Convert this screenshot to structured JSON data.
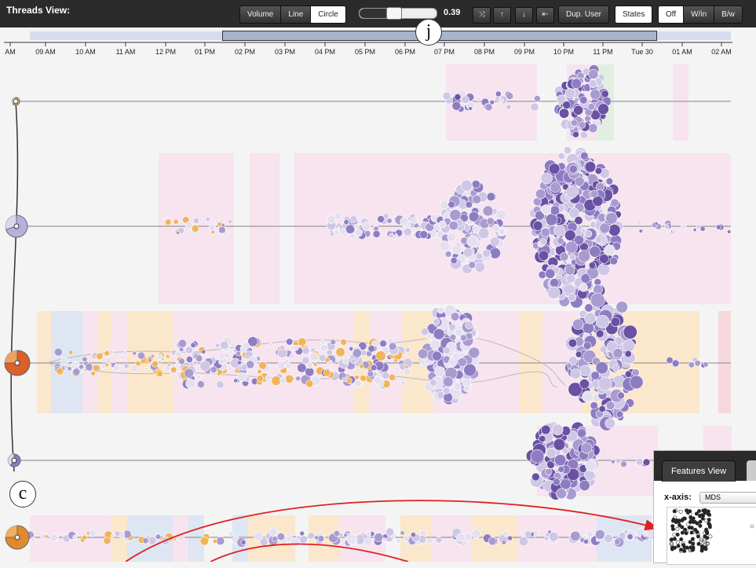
{
  "toolbar": {
    "title": "Threads View:",
    "view_modes": [
      "Volume",
      "Line",
      "Circle"
    ],
    "active_view": "Circle",
    "slider_value": "0.39",
    "slider_fraction": 0.39,
    "icon_buttons": [
      "shuffle-icon",
      "arrow-up-icon",
      "arrow-down-icon",
      "collapse-left-icon"
    ],
    "icon_glyphs": [
      "⤨",
      "↑",
      "↓",
      "⇤"
    ],
    "dup_user": "Dup. User",
    "states": "States",
    "state_modes": [
      "Off",
      "W/in",
      "B/w"
    ],
    "active_state": "Off"
  },
  "timeline": {
    "ticks": [
      "AM",
      "09 AM",
      "10 AM",
      "11 AM",
      "12 PM",
      "01 PM",
      "02 PM",
      "03 PM",
      "04 PM",
      "05 PM",
      "06 PM",
      "07 PM",
      "08 PM",
      "09 PM",
      "10 PM",
      "11 PM",
      "Tue 30",
      "01 AM",
      "02 AM"
    ]
  },
  "annotations": {
    "j": "j",
    "c": "c"
  },
  "features": {
    "tab_label": "Features View",
    "xaxis_label": "x-axis:",
    "xaxis_value": "MDS"
  },
  "colors": {
    "pink_band": "#f7e4ef",
    "orange_band": "#fbe7cc",
    "blue_band": "#dde6f2",
    "green_band": "#e1efdf",
    "bubble_dark": "#4a2c8a",
    "bubble_mid": "#8e7cc3",
    "bubble_light": "#cfc7e6",
    "orange_bubble": "#f0b45a",
    "arrow_red": "#e02020"
  }
}
